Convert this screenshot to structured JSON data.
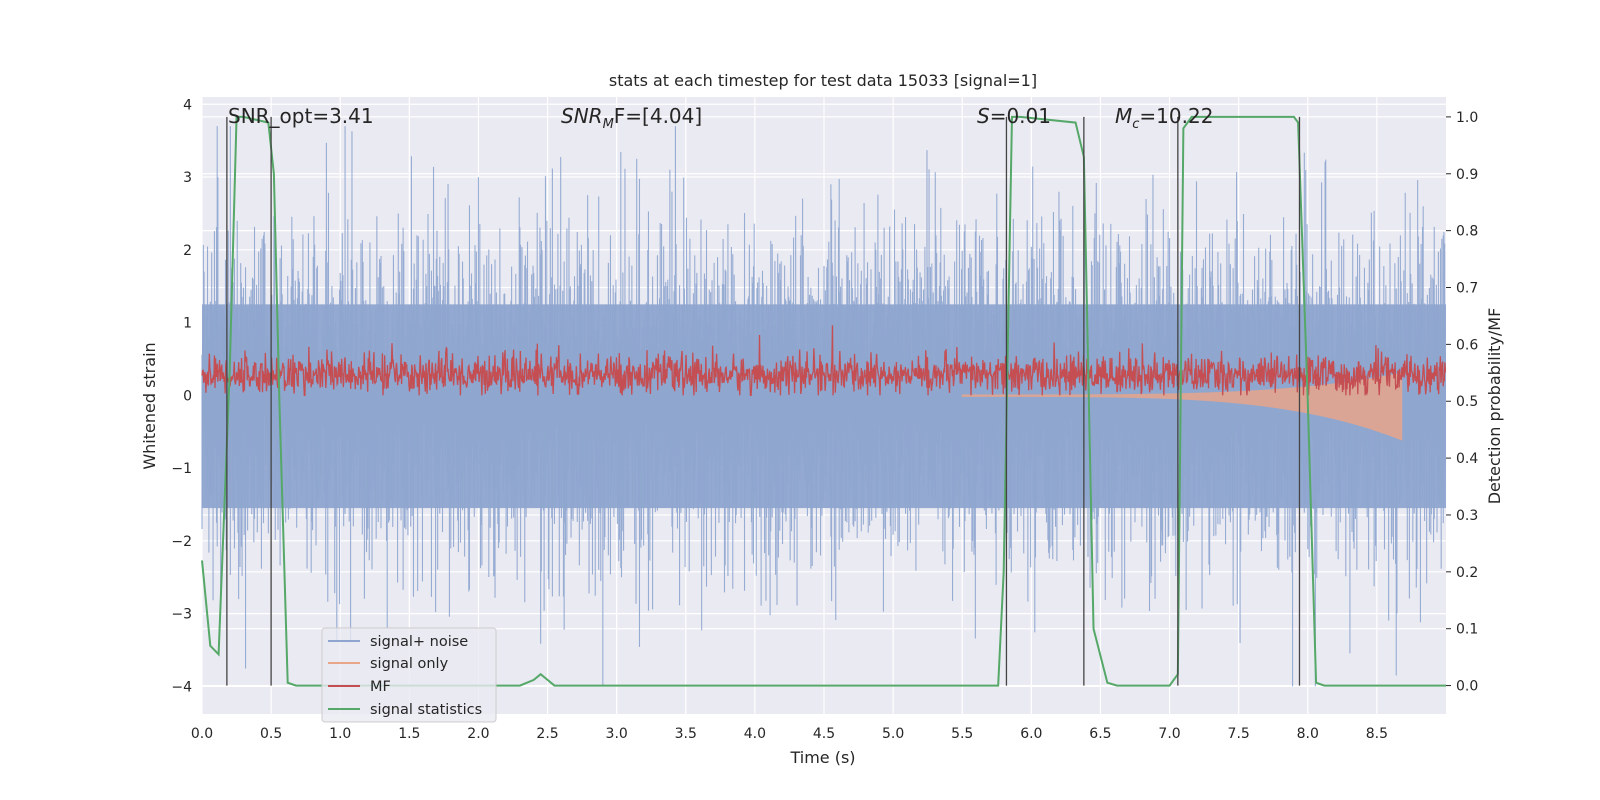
{
  "chart_data": {
    "type": "line",
    "title": "stats at each timestep for test data 15033 [signal=1]",
    "xlabel": "Time (s)",
    "ylabel_left": "Whitened strain",
    "ylabel_right": "Detection probability/MF",
    "xlim": [
      0,
      9.0
    ],
    "ylim_left": [
      -4.38,
      4.1
    ],
    "ylim_right": [
      -0.05,
      1.035
    ],
    "x_ticks": [
      "0.0",
      "0.5",
      "1.0",
      "1.5",
      "2.0",
      "2.5",
      "3.0",
      "3.5",
      "4.0",
      "4.5",
      "5.0",
      "5.5",
      "6.0",
      "6.5",
      "7.0",
      "7.5",
      "8.0",
      "8.5"
    ],
    "y_ticks_left": [
      "4",
      "3",
      "2",
      "1",
      "0",
      "−1",
      "−2",
      "−3",
      "−4"
    ],
    "y_ticks_right": [
      "1.0",
      "0.9",
      "0.8",
      "0.7",
      "0.6",
      "0.5",
      "0.4",
      "0.3",
      "0.2",
      "0.1",
      "0.0"
    ],
    "annotations": {
      "snr_opt": "SNR_opt=3.41",
      "snr_mf_main": "SNR",
      "snr_mf_sub": "M",
      "snr_mf_tail": "F=[4.04]",
      "s_main": "S",
      "s_tail": "=0.01",
      "mc_main": "M",
      "mc_sub": "c",
      "mc_tail": "=10.22"
    },
    "event_lines_x": [
      0.18,
      0.5,
      5.82,
      6.38,
      7.06,
      7.94
    ],
    "series": [
      {
        "name": "signal+ noise",
        "color": "#8ea5cf",
        "amplitude_std": 0.95,
        "range": [
          -4.0,
          3.7
        ]
      },
      {
        "name": "signal only",
        "color": "#e8a58a",
        "chirp_start": 5.5,
        "chirp_end": 8.68,
        "chirp_peak": -0.6
      },
      {
        "name": "MF",
        "color": "#c44e52",
        "baseline": 0.28,
        "range": [
          0.0,
          1.0
        ]
      },
      {
        "name": "signal statistics",
        "color": "#55a868",
        "x": [
          0.0,
          0.06,
          0.12,
          0.2,
          0.25,
          0.3,
          0.48,
          0.52,
          0.56,
          0.62,
          0.68,
          2.3,
          2.4,
          2.45,
          2.5,
          2.55,
          5.76,
          5.8,
          5.86,
          5.92,
          6.32,
          6.38,
          6.45,
          6.55,
          6.62,
          7.0,
          7.06,
          7.1,
          7.16,
          7.9,
          7.93,
          8.0,
          8.06,
          8.12,
          9.0
        ],
        "y": [
          0.22,
          0.07,
          0.055,
          0.55,
          1.0,
          1.0,
          0.99,
          0.9,
          0.5,
          0.005,
          0.0,
          0.0,
          0.01,
          0.02,
          0.01,
          0.0,
          0.0,
          0.2,
          1.0,
          1.0,
          0.99,
          0.93,
          0.1,
          0.005,
          0.0,
          0.0,
          0.02,
          0.98,
          1.0,
          1.0,
          0.99,
          0.5,
          0.005,
          0.0,
          0.0
        ]
      }
    ],
    "legend": [
      "signal+ noise",
      "signal only",
      "MF",
      "signal statistics"
    ]
  }
}
